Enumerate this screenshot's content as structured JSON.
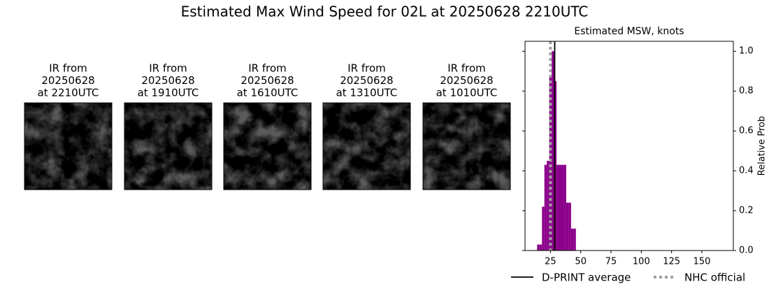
{
  "title": "Estimated Max Wind Speed for 02L at 20250628 2210UTC",
  "panels": [
    {
      "lines": [
        "IR from",
        "20250628",
        "at 2210UTC"
      ]
    },
    {
      "lines": [
        "IR from",
        "20250628",
        "at 1910UTC"
      ]
    },
    {
      "lines": [
        "IR from",
        "20250628",
        "at 1610UTC"
      ]
    },
    {
      "lines": [
        "IR from",
        "20250628",
        "at 1310UTC"
      ]
    },
    {
      "lines": [
        "IR from",
        "20250628",
        "at 1010UTC"
      ]
    }
  ],
  "chart_data": {
    "type": "histogram",
    "title": "Estimated MSW, knots",
    "y_label": "Relative Prob",
    "bins": [
      14,
      16,
      18,
      20,
      22,
      24,
      26,
      28,
      30,
      32,
      34,
      36,
      38,
      40,
      42,
      44,
      46
    ],
    "values": [
      0.03,
      0.03,
      0.22,
      0.43,
      0.45,
      0.88,
      1.0,
      0.85,
      0.43,
      0.43,
      0.43,
      0.43,
      0.24,
      0.24,
      0.11,
      0.11
    ],
    "color": "#8b008b",
    "xlim": [
      4,
      176
    ],
    "xticks": [
      25,
      50,
      75,
      100,
      125,
      150
    ],
    "ylim": [
      0,
      1.05
    ],
    "yticks": [
      {
        "value": 0,
        "label": "0.0"
      },
      {
        "value": 0.2,
        "label": "0.2"
      },
      {
        "value": 0.4,
        "label": "0.4"
      },
      {
        "value": 0.6,
        "label": "0.6"
      },
      {
        "value": 0.8,
        "label": "0.8"
      },
      {
        "value": 1.0,
        "label": "1.0"
      }
    ],
    "reference_lines": [
      {
        "name": "D-PRINT average",
        "value": 28.5,
        "color": "#000000",
        "style": "solid"
      },
      {
        "name": "NHC official",
        "value": 25,
        "color": "#a0a0a0",
        "style": "dotted"
      }
    ]
  }
}
